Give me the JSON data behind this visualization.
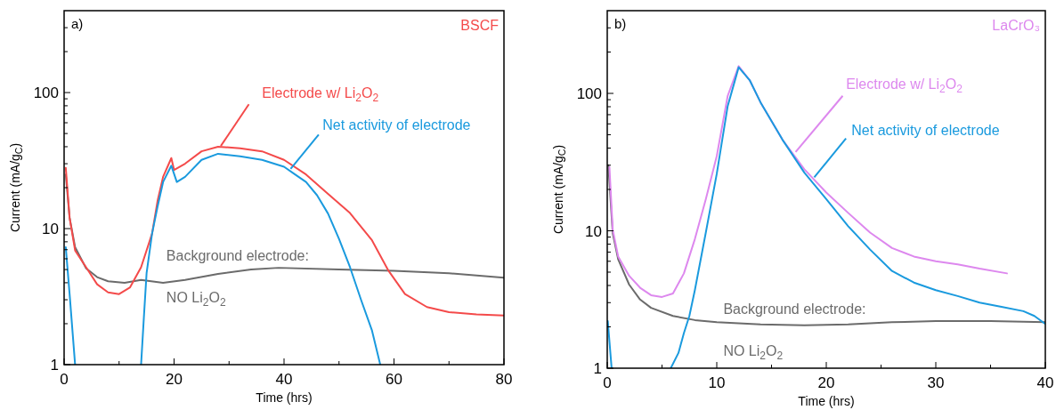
{
  "chart_data": [
    {
      "type": "line",
      "title": "a)",
      "xlabel": "Time (hrs)",
      "ylabel": "Current (mA/g$_{C}$)",
      "log": "y",
      "xlim": [
        0,
        80
      ],
      "ylim": [
        1,
        400
      ],
      "xticks": [
        0,
        {
          "value": 10,
          "label": null
        },
        20,
        {
          "value": 30,
          "label": null
        },
        40,
        {
          "value": 50,
          "label": null
        },
        60,
        {
          "value": 70,
          "label": null
        },
        80
      ],
      "yticks": [
        1,
        {
          "value": 2,
          "label": null
        },
        {
          "value": 3,
          "label": null
        },
        {
          "value": 4,
          "label": null
        },
        {
          "value": 5,
          "label": null
        },
        {
          "value": 6,
          "label": null
        },
        {
          "value": 7,
          "label": null
        },
        {
          "value": 8,
          "label": null
        },
        {
          "value": 9,
          "label": null
        },
        10,
        {
          "value": 20,
          "label": null
        },
        {
          "value": 30,
          "label": null
        },
        {
          "value": 40,
          "label": null
        },
        {
          "value": 50,
          "label": null
        },
        {
          "value": 60,
          "label": null
        },
        {
          "value": 70,
          "label": null
        },
        {
          "value": 80,
          "label": null
        },
        {
          "value": 90,
          "label": null
        },
        100,
        {
          "value": 200,
          "label": null
        },
        {
          "value": 300,
          "label": null
        }
      ],
      "annotations": [
        "BSCF"
      ],
      "legend": false,
      "grid": false,
      "series": [
        {
          "name": "Background electrode:\nNO Li$_{2}$O$_{2}$",
          "color": "#6b6b6b",
          "x": [
            0.3,
            1,
            2,
            4,
            6,
            8,
            11,
            14,
            18,
            22,
            28,
            34,
            39,
            50,
            60,
            70,
            80
          ],
          "values": [
            25,
            12,
            7.3,
            5.1,
            4.4,
            4.1,
            4.0,
            4.2,
            4.0,
            4.2,
            4.65,
            5.0,
            5.15,
            5.0,
            4.9,
            4.7,
            4.35
          ]
        },
        {
          "name": "Electrode w/ Li$_{2}$O$_{2}$",
          "color": "#f44a4a",
          "x": [
            0.3,
            1,
            2,
            4,
            6,
            8,
            10,
            12,
            14,
            16,
            17,
            18,
            19.5,
            20,
            22,
            25,
            28,
            32,
            36,
            40,
            44,
            48,
            52,
            56,
            59,
            62,
            66,
            70,
            75,
            80
          ],
          "values": [
            28,
            12,
            6.9,
            5.2,
            3.9,
            3.4,
            3.3,
            3.7,
            5.2,
            9.2,
            16,
            24,
            33,
            27,
            30,
            37,
            40,
            39,
            37,
            32,
            25,
            18,
            13,
            8.2,
            4.9,
            3.3,
            2.65,
            2.43,
            2.34,
            2.3
          ]
        },
        {
          "name": "Net activity of electrode",
          "color": "#1a9ade",
          "x": [
            0.3,
            1,
            2,
            3,
            14,
            14.5,
            15,
            16,
            17,
            18,
            19.5,
            20.5,
            22,
            25,
            28,
            32,
            36,
            40,
            42,
            44,
            46,
            48,
            50,
            52,
            54,
            56,
            57.5
          ],
          "values": [
            7.3,
            3.3,
            1,
            null,
            1,
            2.2,
            4.7,
            9.2,
            14.5,
            22,
            29,
            22,
            24,
            32,
            35.5,
            34,
            32,
            28.5,
            25,
            22,
            17.6,
            12.9,
            8.4,
            5.2,
            3,
            1.78,
            1
          ]
        }
      ]
    },
    {
      "type": "line",
      "title": "b)",
      "xlabel": "Time (hrs)",
      "ylabel": "Current (mA/g$_{C}$)",
      "log": "y",
      "xlim": [
        0,
        40
      ],
      "ylim": [
        1,
        400
      ],
      "xticks": [
        0,
        {
          "value": 5,
          "label": null
        },
        10,
        {
          "value": 15,
          "label": null
        },
        20,
        {
          "value": 25,
          "label": null
        },
        30,
        {
          "value": 35,
          "label": null
        },
        40
      ],
      "yticks": [
        1,
        {
          "value": 2,
          "label": null
        },
        {
          "value": 3,
          "label": null
        },
        {
          "value": 4,
          "label": null
        },
        {
          "value": 5,
          "label": null
        },
        {
          "value": 6,
          "label": null
        },
        {
          "value": 7,
          "label": null
        },
        {
          "value": 8,
          "label": null
        },
        {
          "value": 9,
          "label": null
        },
        10,
        {
          "value": 20,
          "label": null
        },
        {
          "value": 30,
          "label": null
        },
        {
          "value": 40,
          "label": null
        },
        {
          "value": 50,
          "label": null
        },
        {
          "value": 60,
          "label": null
        },
        {
          "value": 70,
          "label": null
        },
        {
          "value": 80,
          "label": null
        },
        {
          "value": 90,
          "label": null
        },
        100,
        {
          "value": 200,
          "label": null
        },
        {
          "value": 300,
          "label": null
        }
      ],
      "annotations": [
        "LaCrO₃"
      ],
      "legend": false,
      "grid": false,
      "series": [
        {
          "name": "Background electrode:\nNO Li$_{2}$O$_{2}$",
          "color": "#6b6b6b",
          "x": [
            0.1,
            0.5,
            1,
            2,
            3,
            4,
            6,
            8,
            10,
            14,
            18,
            22,
            26,
            30,
            35,
            40
          ],
          "values": [
            30,
            9.6,
            6.2,
            4.06,
            3.16,
            2.75,
            2.4,
            2.24,
            2.16,
            2.08,
            2.05,
            2.08,
            2.16,
            2.2,
            2.2,
            2.16
          ]
        },
        {
          "name": "Electrode w/ Li$_{2}$O$_{2}$",
          "color": "#dd88ee",
          "x": [
            0.2,
            0.5,
            1,
            2,
            3,
            4,
            5,
            6,
            7,
            8,
            9,
            10,
            11,
            12,
            13,
            14,
            16,
            18,
            20,
            22,
            24,
            26,
            28,
            30,
            32,
            34,
            36.5
          ],
          "values": [
            29,
            10.2,
            6.5,
            4.7,
            3.85,
            3.4,
            3.3,
            3.5,
            4.9,
            8.7,
            17,
            35,
            96,
            158,
            125,
            86,
            46,
            28,
            19,
            13.5,
            9.7,
            7.5,
            6.5,
            6.0,
            5.7,
            5.3,
            4.9
          ]
        },
        {
          "name": "Net activity of electrode",
          "color": "#1a9ade",
          "x": [
            0.05,
            0.4,
            1,
            5.8,
            6.5,
            7,
            7.5,
            8,
            9,
            10,
            11,
            12,
            13,
            14,
            16,
            18,
            20,
            22,
            24,
            26,
            28,
            30,
            32,
            34,
            36,
            38,
            39,
            40
          ],
          "values": [
            2.2,
            1,
            null,
            1,
            1.29,
            1.8,
            2.4,
            3.7,
            9.7,
            26,
            81,
            155,
            125,
            86,
            46,
            26.5,
            17,
            10.8,
            7.3,
            5.1,
            4.2,
            3.7,
            3.35,
            3.0,
            2.8,
            2.6,
            2.4,
            2.1
          ]
        }
      ]
    }
  ]
}
